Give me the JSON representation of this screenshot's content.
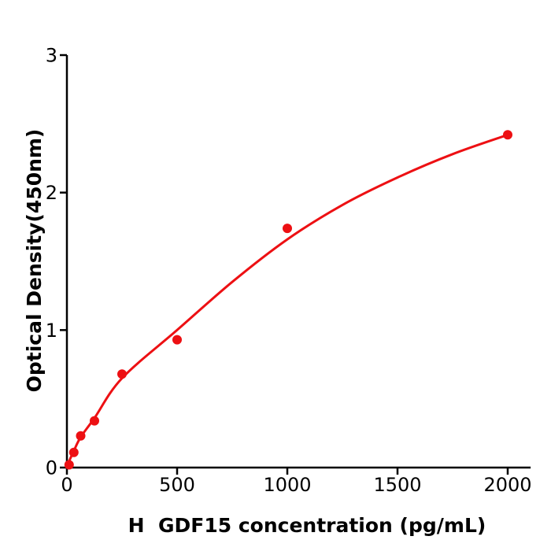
{
  "chart_data": {
    "type": "scatter",
    "title": "",
    "xlabel": "H  GDF15 concentration (pg/mL)",
    "ylabel": "Optical Density(450nm)",
    "xlim": [
      0,
      2104
    ],
    "ylim": [
      0,
      3
    ],
    "x_ticks": [
      0,
      500,
      1000,
      1500,
      2000
    ],
    "y_ticks": [
      0,
      1,
      2,
      3
    ],
    "grid": false,
    "legend": "none",
    "marker_color": "#ed1013",
    "line_color": "#ed1013",
    "axis_color": "#000000",
    "points": [
      {
        "x": 10,
        "y": 0.02
      },
      {
        "x": 31.25,
        "y": 0.11
      },
      {
        "x": 62.5,
        "y": 0.23
      },
      {
        "x": 125,
        "y": 0.34
      },
      {
        "x": 250,
        "y": 0.68
      },
      {
        "x": 500,
        "y": 0.93
      },
      {
        "x": 1000,
        "y": 1.74
      },
      {
        "x": 2000,
        "y": 2.42
      }
    ],
    "fit_curve": [
      [
        0,
        0.01
      ],
      [
        31,
        0.12
      ],
      [
        62,
        0.22
      ],
      [
        125,
        0.36
      ],
      [
        250,
        0.65
      ],
      [
        500,
        1.0
      ],
      [
        750,
        1.35
      ],
      [
        1000,
        1.66
      ],
      [
        1250,
        1.91
      ],
      [
        1500,
        2.11
      ],
      [
        1750,
        2.28
      ],
      [
        2000,
        2.42
      ]
    ]
  }
}
